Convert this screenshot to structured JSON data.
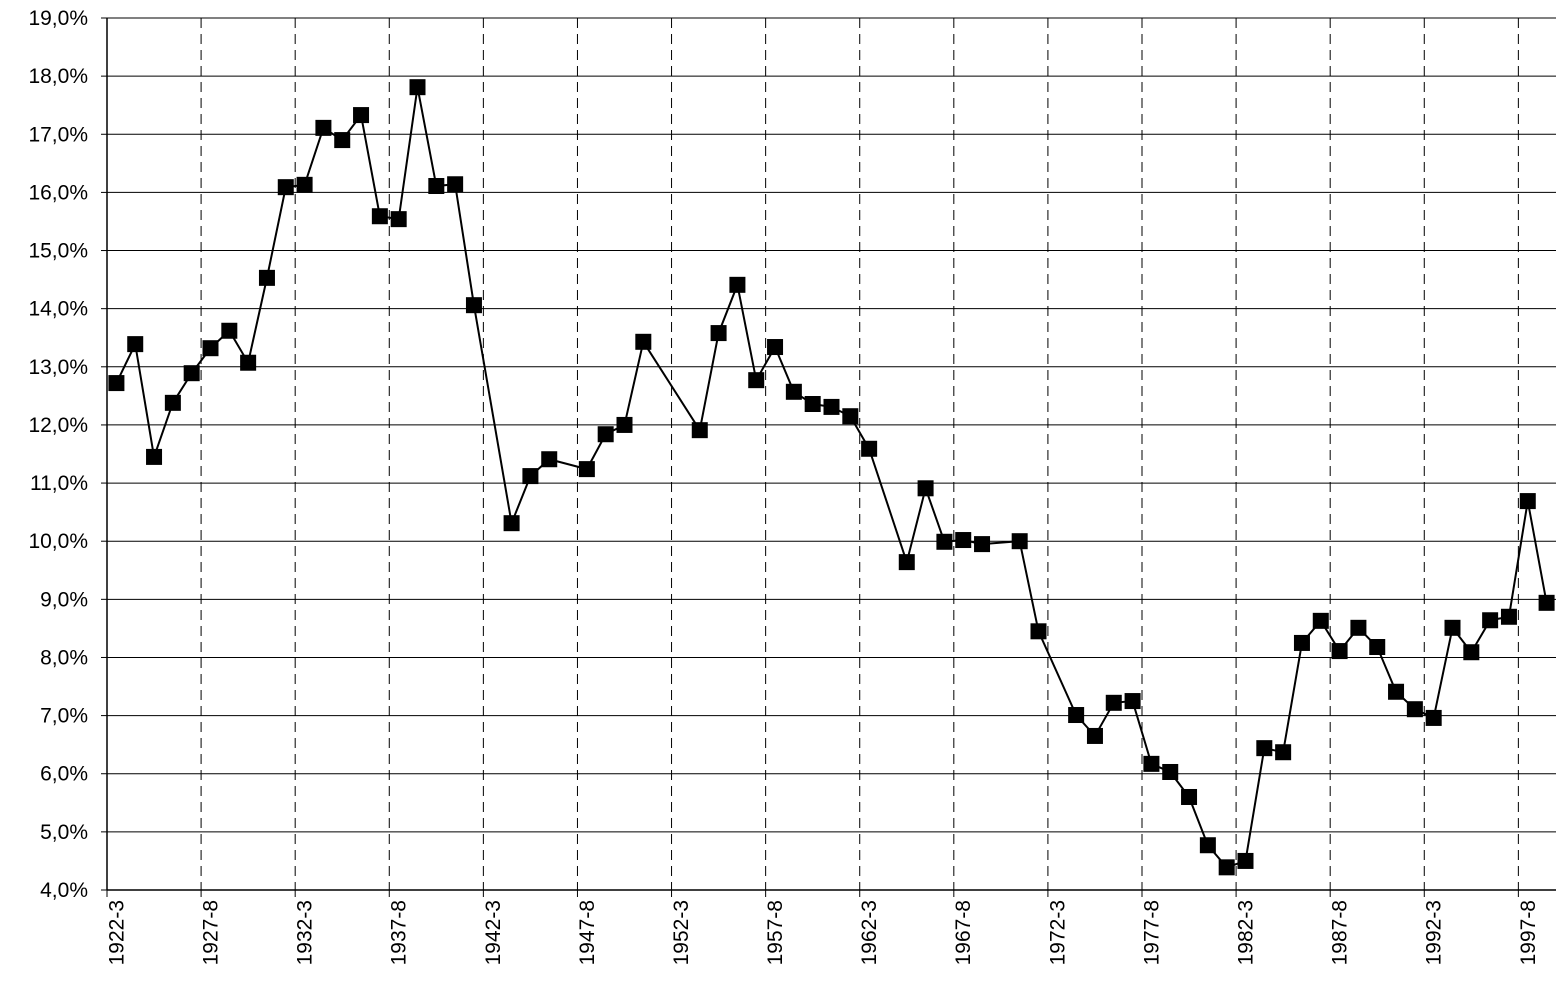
{
  "chart_data": {
    "type": "line",
    "categories": [
      "1922-3",
      null,
      null,
      null,
      null,
      "1927-8",
      null,
      null,
      null,
      null,
      "1932-3",
      null,
      null,
      null,
      null,
      "1937-8",
      null,
      null,
      null,
      null,
      "1942-3",
      null,
      null,
      null,
      null,
      "1947-8",
      null,
      null,
      null,
      null,
      "1952-3",
      null,
      null,
      null,
      null,
      "1957-8",
      null,
      null,
      null,
      null,
      "1962-3",
      null,
      null,
      null,
      null,
      "1967-8",
      null,
      null,
      null,
      null,
      "1972-3",
      null,
      null,
      null,
      null,
      "1977-8",
      null,
      null,
      null,
      null,
      "1982-3",
      null,
      null,
      null,
      null,
      "1987-8",
      null,
      null,
      null,
      null,
      "1992-3",
      null,
      null,
      null,
      null,
      "1997-8",
      null
    ],
    "values": [
      12.72,
      13.39,
      11.45,
      12.38,
      12.89,
      13.32,
      13.62,
      13.07,
      14.53,
      16.09,
      16.13,
      17.11,
      16.9,
      17.33,
      15.59,
      15.54,
      17.81,
      16.11,
      16.14,
      14.06,
      null,
      10.31,
      11.12,
      11.41,
      null,
      11.24,
      11.84,
      12.0,
      13.43,
      null,
      null,
      11.91,
      13.58,
      14.41,
      12.77,
      13.34,
      12.57,
      12.36,
      12.31,
      12.15,
      11.59,
      null,
      9.64,
      10.91,
      9.99,
      10.02,
      9.95,
      null,
      10.0,
      8.45,
      null,
      7.01,
      6.65,
      7.22,
      7.25,
      6.17,
      6.03,
      5.6,
      4.77,
      4.39,
      4.5,
      6.44,
      6.37,
      8.25,
      8.63,
      8.11,
      8.51,
      8.18,
      7.41,
      7.11,
      6.96,
      8.51,
      8.09,
      8.64,
      8.7,
      10.69,
      8.94
    ],
    "color": "#000000",
    "ylim": [
      4,
      19
    ],
    "yticks": [
      {
        "value": 4,
        "label": "4,0%"
      },
      {
        "value": 5,
        "label": "5,0%"
      },
      {
        "value": 6,
        "label": "6,0%"
      },
      {
        "value": 7,
        "label": "7,0%"
      },
      {
        "value": 8,
        "label": "8,0%"
      },
      {
        "value": 9,
        "label": "9,0%"
      },
      {
        "value": 10,
        "label": "10,0%"
      },
      {
        "value": 11,
        "label": "11,0%"
      },
      {
        "value": 12,
        "label": "12,0%"
      },
      {
        "value": 13,
        "label": "13,0%"
      },
      {
        "value": 14,
        "label": "14,0%"
      },
      {
        "value": 15,
        "label": "15,0%"
      },
      {
        "value": 16,
        "label": "16,0%"
      },
      {
        "value": 17,
        "label": "17,0%"
      },
      {
        "value": 18,
        "label": "18,0%"
      },
      {
        "value": 19,
        "label": "19,0%"
      }
    ],
    "grid": true,
    "span_gaps": true
  }
}
